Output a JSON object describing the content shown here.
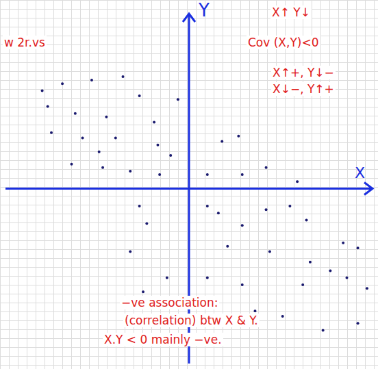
{
  "chart_data": {
    "type": "scatter",
    "xlabel": "X",
    "ylabel": "Y",
    "xlim": [
      -10,
      10
    ],
    "ylim": [
      -10,
      10
    ],
    "tick_labels": false,
    "color": "#1a1a6e",
    "marker": "circle",
    "x": [
      -8.0,
      -6.9,
      -5.3,
      -3.6,
      -2.7,
      -6.2,
      -4.5,
      -1.9,
      -7.5,
      -5.8,
      -4.0,
      -1.7,
      -6.4,
      -4.7,
      -3.2,
      -1.6,
      -4.9,
      -0.6,
      -1.0,
      -7.7,
      1.8,
      2.7,
      1.0,
      2.9,
      4.2,
      5.9,
      -2.7,
      -2.3,
      -3.2,
      -1.2,
      -2.5,
      1.0,
      1.6,
      2.9,
      4.2,
      5.5,
      6.4,
      2.1,
      4.4,
      6.6,
      8.4,
      9.2,
      1.0,
      2.9,
      6.2,
      7.7,
      8.6,
      9.7,
      3.6,
      5.1,
      7.3,
      9.2
    ],
    "values": [
      5.6,
      6.0,
      6.2,
      6.4,
      5.3,
      4.3,
      4.1,
      3.8,
      3.2,
      2.9,
      2.9,
      2.5,
      1.4,
      1.2,
      1.0,
      0.8,
      2.1,
      5.1,
      1.9,
      4.7,
      2.7,
      3.0,
      0.8,
      0.8,
      1.2,
      0.4,
      -1.0,
      -2.0,
      -3.6,
      -5.1,
      -5.9,
      -1.0,
      -1.4,
      -2.1,
      -1.2,
      -1.0,
      -1.8,
      -3.3,
      -3.6,
      -4.2,
      -3.1,
      -3.4,
      -5.1,
      -5.5,
      -5.5,
      -4.7,
      -5.1,
      -5.7,
      -7.0,
      -7.3,
      -8.1,
      -7.7
    ],
    "annotations": [
      {
        "text": "w 2r.vs"
      },
      {
        "text": "X↑ Y↓"
      },
      {
        "text": "Cov (X,Y)<0"
      },
      {
        "text": "X↑+, Y↓−"
      },
      {
        "text": "X↓−, Y↑+"
      },
      {
        "text": "−ve association:"
      },
      {
        "text": "(correlation) btw X & Y."
      },
      {
        "text": "X.Y < 0 mainly −ve."
      }
    ]
  }
}
